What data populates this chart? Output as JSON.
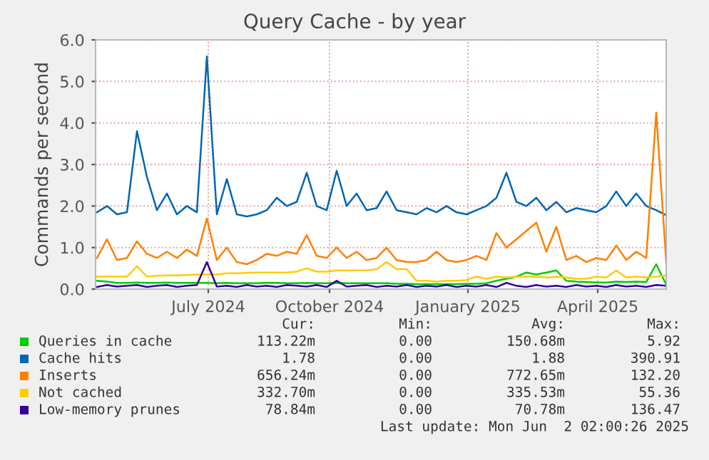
{
  "chart_data": {
    "type": "line",
    "title": "Query Cache - by year",
    "ylabel": "Commands per second",
    "x": [
      "2024-04-29",
      "2024-05-06",
      "2024-05-13",
      "2024-05-20",
      "2024-05-27",
      "2024-06-03",
      "2024-06-10",
      "2024-06-17",
      "2024-06-24",
      "2024-07-01",
      "2024-07-08",
      "2024-07-15",
      "2024-07-22",
      "2024-07-29",
      "2024-08-05",
      "2024-08-12",
      "2024-08-19",
      "2024-08-26",
      "2024-09-02",
      "2024-09-09",
      "2024-09-16",
      "2024-09-23",
      "2024-09-30",
      "2024-10-07",
      "2024-10-14",
      "2024-10-21",
      "2024-10-28",
      "2024-11-04",
      "2024-11-11",
      "2024-11-18",
      "2024-11-25",
      "2024-12-02",
      "2024-12-09",
      "2024-12-16",
      "2024-12-23",
      "2024-12-30",
      "2025-01-06",
      "2025-01-13",
      "2025-01-20",
      "2025-01-27",
      "2025-02-03",
      "2025-02-10",
      "2025-02-17",
      "2025-02-24",
      "2025-03-03",
      "2025-03-10",
      "2025-03-17",
      "2025-03-24",
      "2025-03-31",
      "2025-04-07",
      "2025-04-14",
      "2025-04-21",
      "2025-04-28",
      "2025-05-05",
      "2025-05-12",
      "2025-05-19",
      "2025-05-26",
      "2025-06-02"
    ],
    "series": [
      {
        "name": "Queries in cache",
        "color": "#00cc00",
        "values": [
          0.2,
          0.18,
          0.15,
          0.15,
          0.16,
          0.15,
          0.15,
          0.16,
          0.15,
          0.15,
          0.15,
          0.15,
          0.14,
          0.15,
          0.14,
          0.14,
          0.14,
          0.15,
          0.15,
          0.14,
          0.14,
          0.15,
          0.14,
          0.14,
          0.15,
          0.14,
          0.14,
          0.14,
          0.14,
          0.14,
          0.13,
          0.13,
          0.12,
          0.12,
          0.12,
          0.12,
          0.12,
          0.13,
          0.13,
          0.14,
          0.2,
          0.25,
          0.3,
          0.4,
          0.35,
          0.4,
          0.45,
          0.2,
          0.18,
          0.17,
          0.16,
          0.16,
          0.18,
          0.17,
          0.18,
          0.17,
          0.6,
          0.11
        ]
      },
      {
        "name": "Cache hits",
        "color": "#0066b3",
        "values": [
          1.85,
          2.0,
          1.8,
          1.85,
          3.8,
          2.7,
          1.9,
          2.3,
          1.8,
          2.0,
          1.85,
          5.6,
          1.8,
          2.65,
          1.8,
          1.75,
          1.8,
          1.9,
          2.2,
          2.0,
          2.1,
          2.8,
          2.0,
          1.9,
          2.85,
          2.0,
          2.3,
          1.9,
          1.95,
          2.35,
          1.9,
          1.85,
          1.8,
          1.95,
          1.85,
          2.0,
          1.85,
          1.8,
          1.9,
          2.0,
          2.2,
          2.8,
          2.1,
          2.0,
          2.2,
          1.9,
          2.1,
          1.85,
          1.95,
          1.9,
          1.85,
          2.0,
          2.35,
          2.0,
          2.3,
          2.0,
          1.9,
          1.78
        ]
      },
      {
        "name": "Inserts",
        "color": "#ff8000",
        "values": [
          0.75,
          1.2,
          0.7,
          0.75,
          1.15,
          0.85,
          0.75,
          0.9,
          0.75,
          0.95,
          0.8,
          1.7,
          0.7,
          1.0,
          0.65,
          0.6,
          0.7,
          0.85,
          0.8,
          0.9,
          0.85,
          1.3,
          0.8,
          0.75,
          1.0,
          0.75,
          0.9,
          0.7,
          0.75,
          1.0,
          0.7,
          0.65,
          0.65,
          0.7,
          0.9,
          0.7,
          0.65,
          0.7,
          0.8,
          0.7,
          1.35,
          1.0,
          1.2,
          1.4,
          1.6,
          0.9,
          1.5,
          0.7,
          0.8,
          0.65,
          0.75,
          0.7,
          1.05,
          0.7,
          0.9,
          0.75,
          4.25,
          0.66
        ]
      },
      {
        "name": "Not cached",
        "color": "#ffcc00",
        "values": [
          0.3,
          0.3,
          0.3,
          0.3,
          0.55,
          0.3,
          0.32,
          0.33,
          0.33,
          0.34,
          0.35,
          0.35,
          0.35,
          0.38,
          0.38,
          0.39,
          0.4,
          0.4,
          0.4,
          0.4,
          0.42,
          0.5,
          0.42,
          0.42,
          0.45,
          0.45,
          0.45,
          0.45,
          0.48,
          0.65,
          0.48,
          0.48,
          0.2,
          0.2,
          0.18,
          0.2,
          0.2,
          0.22,
          0.3,
          0.25,
          0.3,
          0.28,
          0.3,
          0.3,
          0.3,
          0.28,
          0.3,
          0.28,
          0.25,
          0.25,
          0.3,
          0.28,
          0.45,
          0.28,
          0.3,
          0.28,
          0.3,
          0.33
        ]
      },
      {
        "name": "Low-memory prunes",
        "color": "#330099",
        "values": [
          0.05,
          0.1,
          0.06,
          0.08,
          0.1,
          0.05,
          0.08,
          0.1,
          0.05,
          0.08,
          0.1,
          0.65,
          0.06,
          0.08,
          0.05,
          0.1,
          0.06,
          0.08,
          0.05,
          0.1,
          0.08,
          0.06,
          0.1,
          0.05,
          0.2,
          0.06,
          0.08,
          0.1,
          0.05,
          0.08,
          0.06,
          0.1,
          0.05,
          0.08,
          0.06,
          0.1,
          0.05,
          0.08,
          0.06,
          0.1,
          0.05,
          0.15,
          0.08,
          0.05,
          0.1,
          0.06,
          0.08,
          0.05,
          0.1,
          0.06,
          0.08,
          0.05,
          0.1,
          0.06,
          0.08,
          0.05,
          0.1,
          0.08
        ]
      }
    ],
    "xlim": [
      "2024-04-28",
      "2025-06-02"
    ],
    "xticks": [
      {
        "value": "2024-07-16",
        "label": "July 2024"
      },
      {
        "value": "2024-10-09",
        "label": "October 2024"
      },
      {
        "value": "2025-01-14",
        "label": "January 2025"
      },
      {
        "value": "2025-04-15",
        "label": "April 2025"
      }
    ],
    "ylim": [
      0,
      6
    ],
    "yticks": [
      {
        "value": 0,
        "label": "0.0"
      },
      {
        "value": 1,
        "label": "1.0"
      },
      {
        "value": 2,
        "label": "2.0"
      },
      {
        "value": 3,
        "label": "3.0"
      },
      {
        "value": 4,
        "label": "4.0"
      },
      {
        "value": 5,
        "label": "5.0"
      },
      {
        "value": 6,
        "label": "6.0"
      }
    ],
    "grid": true,
    "legend": "bottom",
    "marker": "none",
    "line_style": "solid",
    "annotations": [
      "Cur:",
      "Min:",
      "Avg:",
      "Max:",
      "113.22m",
      "0.00",
      "150.68m",
      "5.92",
      "1.78",
      "0.00",
      "1.88",
      "390.91",
      "656.24m",
      "0.00",
      "772.65m",
      "132.20",
      "332.70m",
      "0.00",
      "335.53m",
      "55.36",
      "78.84m",
      "0.00",
      "70.78m",
      "136.47",
      "Last update: Mon Jun  2 02:00:26 2025"
    ]
  }
}
